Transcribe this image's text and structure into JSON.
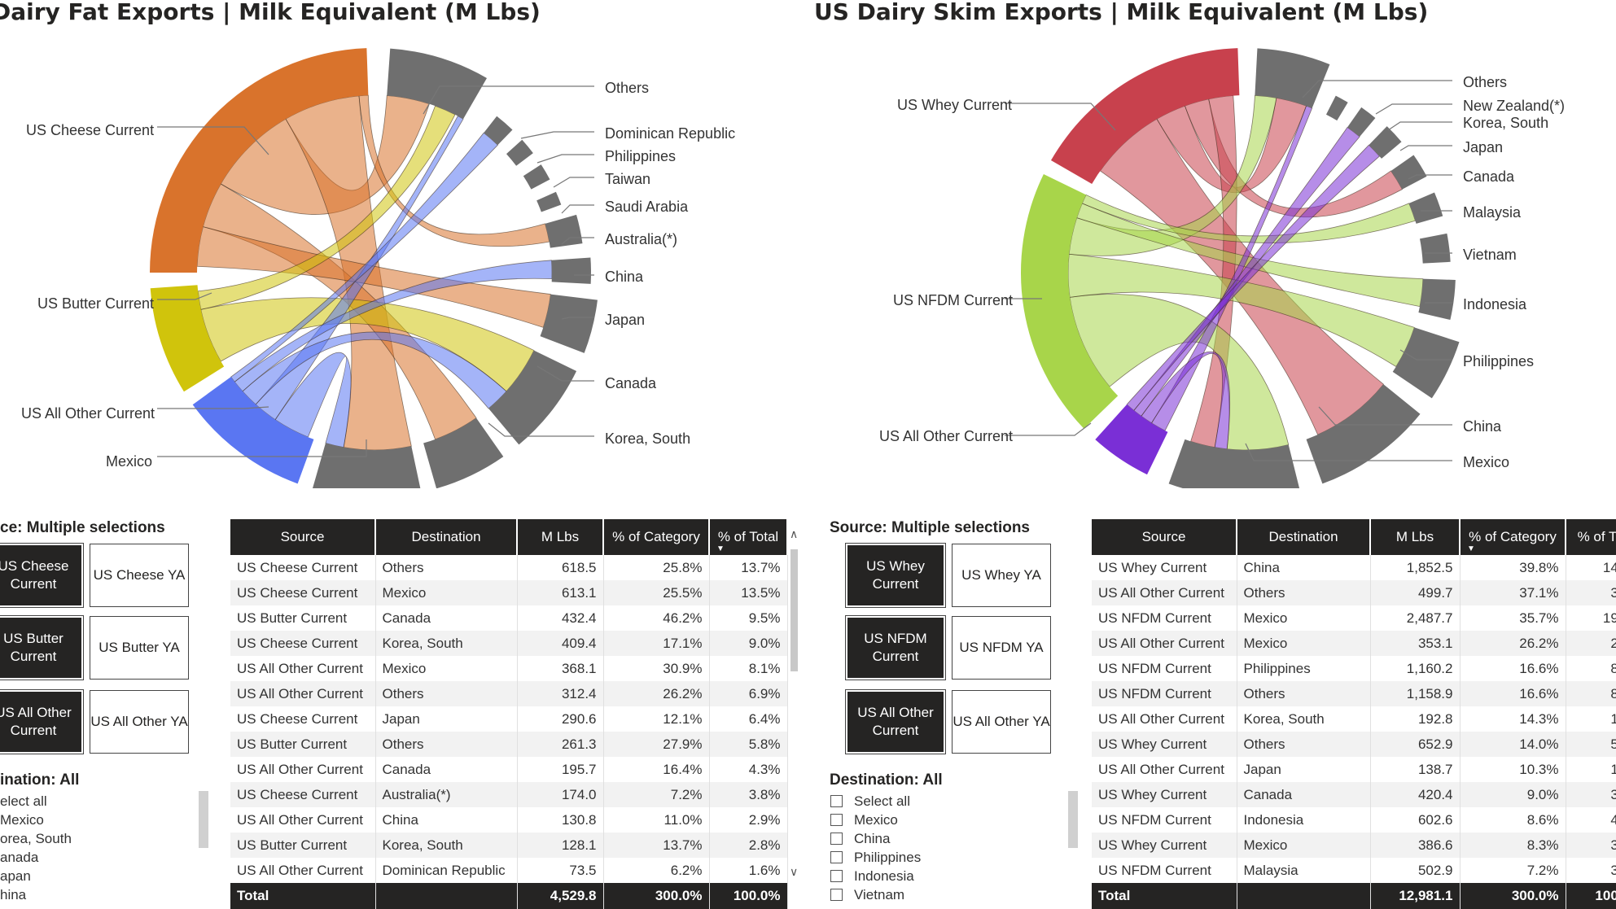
{
  "left": {
    "title": "Dairy Fat Exports | Milk Equivalent (M Lbs)",
    "chord_labels": {
      "sources": [
        "US Cheese Current",
        "US Butter Current",
        "US All Other Current",
        "Mexico"
      ],
      "destinations": [
        "Others",
        "Dominican Republic",
        "Philippines",
        "Taiwan",
        "Saudi Arabia",
        "Australia(*)",
        "China",
        "Japan",
        "Canada",
        "Korea, South"
      ]
    },
    "slicer": {
      "source_header": "ce: Multiple selections",
      "tiles": [
        {
          "label": "US Cheese Current",
          "selected": true
        },
        {
          "label": "US Cheese YA",
          "selected": false
        },
        {
          "label": "US Butter Current",
          "selected": true
        },
        {
          "label": "US Butter YA",
          "selected": false
        },
        {
          "label": "US All Other Current",
          "selected": true
        },
        {
          "label": "US All Other YA",
          "selected": false
        }
      ],
      "dest_header": "ination: All",
      "dest_items": [
        "elect all",
        "Mexico",
        "orea, South",
        "anada",
        "apan",
        "hina"
      ]
    },
    "table": {
      "columns": [
        "Source",
        "Destination",
        "M Lbs",
        "% of Category",
        "% of Total"
      ],
      "rows": [
        [
          "US Cheese Current",
          "Others",
          "618.5",
          "25.8%",
          "13.7%"
        ],
        [
          "US Cheese Current",
          "Mexico",
          "613.1",
          "25.5%",
          "13.5%"
        ],
        [
          "US Butter Current",
          "Canada",
          "432.4",
          "46.2%",
          "9.5%"
        ],
        [
          "US Cheese Current",
          "Korea, South",
          "409.4",
          "17.1%",
          "9.0%"
        ],
        [
          "US All Other Current",
          "Mexico",
          "368.1",
          "30.9%",
          "8.1%"
        ],
        [
          "US All Other Current",
          "Others",
          "312.4",
          "26.2%",
          "6.9%"
        ],
        [
          "US Cheese Current",
          "Japan",
          "290.6",
          "12.1%",
          "6.4%"
        ],
        [
          "US Butter Current",
          "Others",
          "261.3",
          "27.9%",
          "5.8%"
        ],
        [
          "US All Other Current",
          "Canada",
          "195.7",
          "16.4%",
          "4.3%"
        ],
        [
          "US Cheese Current",
          "Australia(*)",
          "174.0",
          "7.2%",
          "3.8%"
        ],
        [
          "US All Other Current",
          "China",
          "130.8",
          "11.0%",
          "2.9%"
        ],
        [
          "US Butter Current",
          "Korea, South",
          "128.1",
          "13.7%",
          "2.8%"
        ],
        [
          "US All Other Current",
          "Dominican Republic",
          "73.5",
          "6.2%",
          "1.6%"
        ]
      ],
      "total": [
        "Total",
        "",
        "4,529.8",
        "300.0%",
        "100.0%"
      ]
    }
  },
  "right": {
    "title": "US Dairy Skim Exports | Milk Equivalent (M Lbs)",
    "chord_labels": {
      "sources": [
        "US Whey Current",
        "US NFDM Current",
        "US All Other Current"
      ],
      "destinations": [
        "Others",
        "New Zealand(*)",
        "Korea, South",
        "Japan",
        "Canada",
        "Malaysia",
        "Vietnam",
        "Indonesia",
        "Philippines",
        "China",
        "Mexico"
      ]
    },
    "slicer": {
      "source_header": "Source: Multiple selections",
      "tiles": [
        {
          "label": "US Whey Current",
          "selected": true
        },
        {
          "label": "US Whey YA",
          "selected": false
        },
        {
          "label": "US NFDM Current",
          "selected": true
        },
        {
          "label": "US NFDM YA",
          "selected": false
        },
        {
          "label": "US All Other Current",
          "selected": true
        },
        {
          "label": "US All Other YA",
          "selected": false
        }
      ],
      "dest_header": "Destination: All",
      "dest_items": [
        "Select all",
        "Mexico",
        "China",
        "Philippines",
        "Indonesia",
        "Vietnam"
      ]
    },
    "table": {
      "columns": [
        "Source",
        "Destination",
        "M Lbs",
        "% of Category",
        "% of T"
      ],
      "rows": [
        [
          "US Whey Current",
          "China",
          "1,852.5",
          "39.8%",
          "14."
        ],
        [
          "US All Other Current",
          "Others",
          "499.7",
          "37.1%",
          "3."
        ],
        [
          "US NFDM Current",
          "Mexico",
          "2,487.7",
          "35.7%",
          "19."
        ],
        [
          "US All Other Current",
          "Mexico",
          "353.1",
          "26.2%",
          "2."
        ],
        [
          "US NFDM Current",
          "Philippines",
          "1,160.2",
          "16.6%",
          "8."
        ],
        [
          "US NFDM Current",
          "Others",
          "1,158.9",
          "16.6%",
          "8."
        ],
        [
          "US All Other Current",
          "Korea, South",
          "192.8",
          "14.3%",
          "1."
        ],
        [
          "US Whey Current",
          "Others",
          "652.9",
          "14.0%",
          "5."
        ],
        [
          "US All Other Current",
          "Japan",
          "138.7",
          "10.3%",
          "1."
        ],
        [
          "US Whey Current",
          "Canada",
          "420.4",
          "9.0%",
          "3."
        ],
        [
          "US NFDM Current",
          "Indonesia",
          "602.6",
          "8.6%",
          "4."
        ],
        [
          "US Whey Current",
          "Mexico",
          "386.6",
          "8.3%",
          "3."
        ],
        [
          "US NFDM Current",
          "Malaysia",
          "502.9",
          "7.2%",
          "3."
        ]
      ],
      "total": [
        "Total",
        "",
        "12,981.1",
        "300.0%",
        "100."
      ]
    }
  },
  "chart_data": [
    {
      "type": "table",
      "title": "Dairy Fat Exports | Milk Equivalent (M Lbs)",
      "columns": [
        "Source",
        "Destination",
        "M Lbs",
        "% of Category",
        "% of Total"
      ],
      "rows": [
        [
          "US Cheese Current",
          "Others",
          618.5,
          25.8,
          13.7
        ],
        [
          "US Cheese Current",
          "Mexico",
          613.1,
          25.5,
          13.5
        ],
        [
          "US Butter Current",
          "Canada",
          432.4,
          46.2,
          9.5
        ],
        [
          "US Cheese Current",
          "Korea, South",
          409.4,
          17.1,
          9.0
        ],
        [
          "US All Other Current",
          "Mexico",
          368.1,
          30.9,
          8.1
        ],
        [
          "US All Other Current",
          "Others",
          312.4,
          26.2,
          6.9
        ],
        [
          "US Cheese Current",
          "Japan",
          290.6,
          12.1,
          6.4
        ],
        [
          "US Butter Current",
          "Others",
          261.3,
          27.9,
          5.8
        ],
        [
          "US All Other Current",
          "Canada",
          195.7,
          16.4,
          4.3
        ],
        [
          "US Cheese Current",
          "Australia(*)",
          174.0,
          7.2,
          3.8
        ],
        [
          "US All Other Current",
          "China",
          130.8,
          11.0,
          2.9
        ],
        [
          "US Butter Current",
          "Korea, South",
          128.1,
          13.7,
          2.8
        ],
        [
          "US All Other Current",
          "Dominican Republic",
          73.5,
          6.2,
          1.6
        ]
      ],
      "total": 4529.8
    },
    {
      "type": "table",
      "title": "US Dairy Skim Exports | Milk Equivalent (M Lbs)",
      "columns": [
        "Source",
        "Destination",
        "M Lbs",
        "% of Category"
      ],
      "rows": [
        [
          "US Whey Current",
          "China",
          1852.5,
          39.8
        ],
        [
          "US All Other Current",
          "Others",
          499.7,
          37.1
        ],
        [
          "US NFDM Current",
          "Mexico",
          2487.7,
          35.7
        ],
        [
          "US All Other Current",
          "Mexico",
          353.1,
          26.2
        ],
        [
          "US NFDM Current",
          "Philippines",
          1160.2,
          16.6
        ],
        [
          "US NFDM Current",
          "Others",
          1158.9,
          16.6
        ],
        [
          "US All Other Current",
          "Korea, South",
          192.8,
          14.3
        ],
        [
          "US Whey Current",
          "Others",
          652.9,
          14.0
        ],
        [
          "US All Other Current",
          "Japan",
          138.7,
          10.3
        ],
        [
          "US Whey Current",
          "Canada",
          420.4,
          9.0
        ],
        [
          "US NFDM Current",
          "Indonesia",
          602.6,
          8.6
        ],
        [
          "US Whey Current",
          "Mexico",
          386.6,
          8.3
        ],
        [
          "US NFDM Current",
          "Malaysia",
          502.9,
          7.2
        ]
      ],
      "total": 12981.1
    }
  ],
  "colors": {
    "cheese": "#d9732c",
    "butter": "#d0c40c",
    "allother_fat": "#5a76f2",
    "whey": "#c8414d",
    "nfdm": "#a8d54a",
    "allother_skim": "#7a2fd6",
    "dest": "#6f6f6f",
    "header": "#252423"
  }
}
